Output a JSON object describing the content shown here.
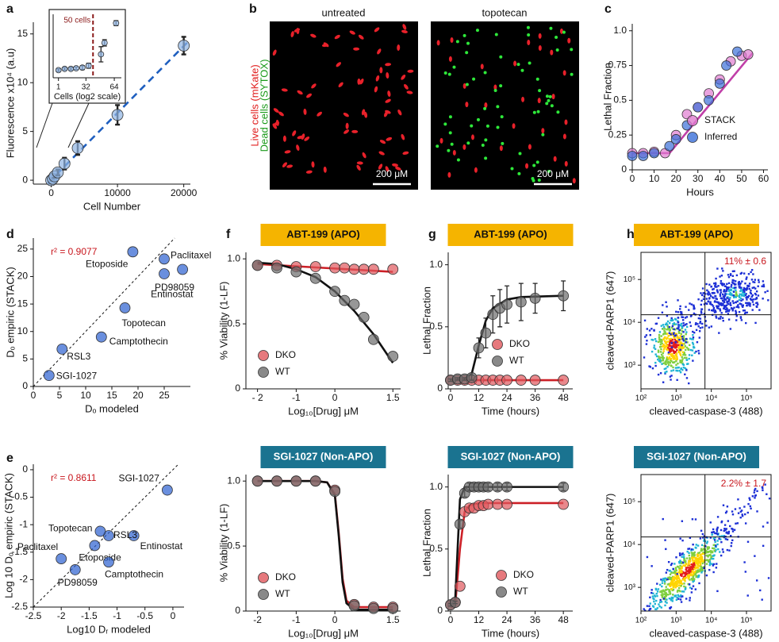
{
  "panel_labels": [
    "a",
    "b",
    "c",
    "d",
    "e",
    "f",
    "g",
    "h"
  ],
  "micrographs": {
    "panels": [
      {
        "title": "untreated",
        "scale_bar": "200 μM"
      },
      {
        "title": "topotecan",
        "scale_bar": "200 μM"
      }
    ],
    "labels": [
      "Live cells (mKate)",
      "Dead cells (SYTOX)"
    ]
  },
  "chart_data": [
    {
      "type": "scatter",
      "xlabel": "Cell Number",
      "ylabel": "Fluorescence x10⁴ (a.u)",
      "xlim": [
        -2700,
        21000
      ],
      "ylim": [
        -0.4,
        16.2
      ],
      "xticks": [
        0,
        10000,
        20000
      ],
      "yticks": [
        0,
        5,
        10,
        15
      ],
      "series": [
        {
          "color": "#1f5fbf",
          "mode": "line",
          "dash": true,
          "x": [
            -500,
            20500
          ],
          "y": [
            -0.3,
            14.1
          ]
        },
        {
          "color": "#8fb4e3",
          "mode": "markers",
          "x": [
            0,
            250,
            500,
            1000,
            2000,
            4000,
            10000,
            20000
          ],
          "y": [
            0,
            0.15,
            0.4,
            0.8,
            1.7,
            3.3,
            6.7,
            13.8
          ],
          "err": [
            0.1,
            0.1,
            0.15,
            0.3,
            0.6,
            0.7,
            1.0,
            0.9
          ]
        }
      ]
    },
    {
      "type": "scatter",
      "xlabel": "Cells (log2 scale)",
      "xlim": [
        -5,
        72
      ],
      "ylim": [
        0,
        1
      ],
      "xticks": [
        1,
        32,
        64
      ],
      "vline": 40,
      "annotation": "50 cells",
      "series": [
        {
          "color": "#8fb4e3",
          "mode": "markers",
          "x": [
            1,
            8,
            15,
            21,
            28,
            35,
            49,
            53,
            66
          ],
          "y": [
            0.12,
            0.14,
            0.14,
            0.15,
            0.16,
            0.19,
            0.37,
            0.55,
            0.86
          ],
          "err": [
            0.02,
            0.02,
            0.02,
            0.02,
            0.03,
            0.04,
            0.12,
            0.05,
            0.04
          ]
        }
      ]
    },
    {
      "type": "line",
      "xlabel": "Hours",
      "ylabel": "Lethal Fraction",
      "xlim": [
        0,
        62
      ],
      "ylim": [
        0,
        1.05
      ],
      "xticks": [
        0,
        10,
        20,
        30,
        40,
        50,
        60
      ],
      "yticks": [
        0,
        0.25,
        0.5,
        0.75,
        {
          "value": 1,
          "label": "1.0"
        }
      ],
      "legend": "center right",
      "series": [
        {
          "color": "#c03fa8",
          "mode": "line",
          "x": [
            0,
            17,
            55
          ],
          "y": [
            0.12,
            0.12,
            0.84
          ]
        },
        {
          "name": "STACK",
          "color": "#e07ad0",
          "mode": "markers",
          "x": [
            0,
            5,
            10,
            15,
            20,
            25,
            30,
            35,
            40,
            45,
            50,
            53
          ],
          "y": [
            0.12,
            0.12,
            0.13,
            0.12,
            0.25,
            0.4,
            0.45,
            0.55,
            0.65,
            0.78,
            0.82,
            0.83
          ]
        },
        {
          "name": "Inferred",
          "color": "#3a6fd8",
          "mode": "markers",
          "x": [
            0,
            5,
            10,
            17,
            20,
            25,
            30,
            35,
            40,
            43,
            48
          ],
          "y": [
            0.1,
            0.1,
            0.12,
            0.17,
            0.22,
            0.32,
            0.45,
            0.5,
            0.62,
            0.75,
            0.85
          ]
        }
      ]
    },
    {
      "type": "scatter",
      "xlabel": "Dₒ modeled",
      "ylabel": "Dₒ empiric (STACK)",
      "annotation": "r² = 0.9077",
      "diagonal": true,
      "xlim": [
        0,
        30
      ],
      "ylim": [
        0,
        27
      ],
      "xticks": [
        0,
        5,
        10,
        15,
        20,
        25
      ],
      "yticks": [
        0,
        5,
        10,
        15,
        20,
        25
      ],
      "point_labels": [
        "SGI-1027",
        "RSL3",
        "Camptothecin",
        "Topotecan",
        "Etoposide",
        "Paclitaxel",
        "PD98059",
        "Entinostat"
      ],
      "series": [
        {
          "color": "#2b5fd0",
          "mode": "markers",
          "x": [
            3,
            5.5,
            13,
            17.5,
            19,
            25,
            25,
            28.5
          ],
          "y": [
            2,
            6.8,
            9,
            14.3,
            24.5,
            23.2,
            20.5,
            21.3
          ]
        }
      ]
    },
    {
      "type": "scatter",
      "xlabel": "Log10 Dᵣ modeled",
      "ylabel": "Log 10 Dₒ empiric (STACK)",
      "annotation": "r² = 0.8611",
      "diagonal": true,
      "xlim": [
        -2.5,
        0.2
      ],
      "ylim": [
        -2.5,
        0.1
      ],
      "xticks": [
        -2.5,
        -2,
        -1.5,
        -1,
        -0.5,
        0
      ],
      "yticks": [
        -2.5,
        -2,
        -1.5,
        -1,
        -0.5,
        0
      ],
      "point_labels": [
        "SGI-1027",
        "Entinostat",
        "RSL3",
        "Topotecan",
        "Etoposide",
        "Camptothecin",
        "Paclitaxel",
        "PD98059"
      ],
      "series": [
        {
          "color": "#2b5fd0",
          "mode": "markers",
          "x": [
            -0.1,
            -0.7,
            -1.15,
            -1.3,
            -1.4,
            -1.15,
            -2,
            -1.75
          ],
          "y": [
            -0.37,
            -1.2,
            -1.2,
            -1.12,
            -1.38,
            -1.68,
            -1.62,
            -1.82
          ]
        }
      ]
    },
    {
      "type": "line",
      "title": "ABT-199 (APO)",
      "header_color": "#f5b400",
      "xlabel": "Log₁₀[Drug] μM",
      "ylabel": "% Viability (1-LF)",
      "xlim": [
        -2.3,
        1.7
      ],
      "ylim": [
        0,
        1.05
      ],
      "xticks": [
        {
          "value": -2,
          "label": "- 2"
        },
        -1,
        0,
        1.5
      ],
      "yticks": [
        0,
        0.5,
        {
          "value": 1,
          "label": "1.0"
        }
      ],
      "legend": "lower left",
      "series": [
        {
          "color": "#cc2027",
          "mode": "line",
          "x": [
            -2,
            1.5
          ],
          "y": [
            0.96,
            0.9
          ]
        },
        {
          "color": "#111111",
          "mode": "line",
          "x": [
            -2,
            -1.5,
            -1,
            -0.5,
            0,
            0.5,
            1,
            1.5
          ],
          "y": [
            0.97,
            0.96,
            0.92,
            0.86,
            0.75,
            0.6,
            0.42,
            0.2
          ]
        },
        {
          "name": "DKO",
          "color": "#e0575c",
          "mode": "markers",
          "x": [
            -2,
            -1.5,
            -1,
            -0.5,
            0,
            0.25,
            0.5,
            0.75,
            1,
            1.5
          ],
          "y": [
            0.95,
            0.95,
            0.94,
            0.94,
            0.93,
            0.93,
            0.92,
            0.92,
            0.92,
            0.92
          ]
        },
        {
          "name": "WT",
          "color": "#6b6b6b",
          "mode": "markers",
          "x": [
            -2,
            -1.5,
            -1,
            -0.5,
            0,
            0.25,
            0.5,
            0.75,
            1,
            1.5
          ],
          "y": [
            0.95,
            0.93,
            0.9,
            0.85,
            0.75,
            0.68,
            0.65,
            0.55,
            0.38,
            0.25
          ]
        }
      ]
    },
    {
      "type": "line",
      "title": "SGI-1027 (Non-APO)",
      "header_color": "#1a7390",
      "xlabel": "Log₁₀[Drug] μM",
      "ylabel": "% Viability (1-LF)",
      "xlim": [
        -2.3,
        1.7
      ],
      "ylim": [
        0,
        1.05
      ],
      "xticks": [
        -2,
        -1,
        0,
        1.5
      ],
      "yticks": [
        0,
        0.5,
        {
          "value": 1,
          "label": "1.0"
        }
      ],
      "legend": "lower left",
      "series": [
        {
          "color": "#cc2027",
          "mode": "line",
          "x": [
            -2,
            -0.5,
            -0.2,
            0,
            0.1,
            0.2,
            0.3,
            0.5,
            1.5
          ],
          "y": [
            1,
            1,
            0.99,
            0.9,
            0.6,
            0.25,
            0.08,
            0.03,
            0.03
          ]
        },
        {
          "color": "#111111",
          "mode": "line",
          "x": [
            -2,
            -0.5,
            -0.2,
            0,
            0.1,
            0.2,
            0.3,
            0.5,
            1.5
          ],
          "y": [
            1,
            1,
            0.99,
            0.89,
            0.58,
            0.22,
            0.06,
            0.01,
            0.01
          ]
        },
        {
          "name": "DKO",
          "color": "#e0575c",
          "mode": "markers",
          "x": [
            -2,
            -1.5,
            -1,
            -0.5,
            0,
            0.5,
            1,
            1.5
          ],
          "y": [
            1,
            1,
            1,
            1,
            0.93,
            0.05,
            0.03,
            0.03
          ]
        },
        {
          "name": "WT",
          "color": "#6b6b6b",
          "mode": "markers",
          "x": [
            -2,
            -1.5,
            -1,
            -0.5,
            0,
            0.5,
            1,
            1.5
          ],
          "y": [
            1,
            1,
            1,
            1,
            0.92,
            0.04,
            0.02,
            0.02
          ]
        }
      ]
    },
    {
      "type": "line",
      "title": "ABT-199 (APO)",
      "header_color": "#f5b400",
      "xlabel": "Time (hours)",
      "ylabel": "Lethal Fraction",
      "xlim": [
        -1,
        52
      ],
      "ylim": [
        0,
        1.1
      ],
      "xticks": [
        0,
        12,
        24,
        36,
        48
      ],
      "yticks": [
        0,
        0.5,
        {
          "value": 1,
          "label": "1.0"
        }
      ],
      "legend": "center right",
      "series": [
        {
          "color": "#cc2027",
          "mode": "line",
          "x": [
            0,
            48
          ],
          "y": [
            0.07,
            0.07
          ]
        },
        {
          "color": "#111111",
          "mode": "line",
          "x": [
            0,
            6,
            9,
            12,
            15,
            18,
            24,
            30,
            48
          ],
          "y": [
            0.07,
            0.08,
            0.12,
            0.35,
            0.55,
            0.65,
            0.72,
            0.74,
            0.75
          ]
        },
        {
          "name": "DKO",
          "color": "#e0575c",
          "mode": "markers",
          "x": [
            0,
            3,
            6,
            9,
            12,
            15,
            18,
            21,
            24,
            30,
            36,
            48
          ],
          "y": [
            0.07,
            0.07,
            0.07,
            0.07,
            0.07,
            0.07,
            0.07,
            0.07,
            0.07,
            0.07,
            0.07,
            0.07
          ]
        },
        {
          "name": "WT",
          "color": "#6b6b6b",
          "mode": "markers",
          "x": [
            0,
            3,
            6,
            9,
            12,
            15,
            18,
            21,
            24,
            30,
            36,
            48
          ],
          "y": [
            0.07,
            0.08,
            0.08,
            0.09,
            0.33,
            0.45,
            0.6,
            0.65,
            0.68,
            0.7,
            0.73,
            0.75
          ],
          "err": [
            0.01,
            0.01,
            0.01,
            0.02,
            0.08,
            0.12,
            0.15,
            0.15,
            0.15,
            0.15,
            0.12,
            0.12
          ]
        }
      ]
    },
    {
      "type": "line",
      "title": "SGI-1027 (Non-APO)",
      "header_color": "#1a7390",
      "xlabel": "Time (hours)",
      "ylabel": "Lethal Fraction",
      "xlim": [
        -1,
        52
      ],
      "ylim": [
        0,
        1.1
      ],
      "xticks": [
        0,
        12,
        24,
        36,
        48
      ],
      "yticks": [
        0,
        0.5,
        {
          "value": 1,
          "label": "1.0"
        }
      ],
      "legend": "lower right",
      "series": [
        {
          "color": "#cc2027",
          "mode": "line",
          "x": [
            0,
            2,
            4,
            6,
            8,
            12,
            48
          ],
          "y": [
            0.03,
            0.05,
            0.5,
            0.8,
            0.85,
            0.87,
            0.87
          ]
        },
        {
          "color": "#111111",
          "mode": "line",
          "x": [
            0,
            2,
            4,
            6,
            8,
            48
          ],
          "y": [
            0.03,
            0.1,
            0.9,
            1,
            1,
            1
          ]
        },
        {
          "name": "DKO",
          "color": "#e0575c",
          "mode": "markers",
          "x": [
            0,
            2,
            4,
            6,
            8,
            10,
            12,
            14,
            16,
            20,
            24,
            48
          ],
          "y": [
            0.05,
            0.07,
            0.2,
            0.8,
            0.83,
            0.83,
            0.85,
            0.85,
            0.86,
            0.86,
            0.86,
            0.86
          ]
        },
        {
          "name": "WT",
          "color": "#6b6b6b",
          "mode": "markers",
          "x": [
            0,
            2,
            4,
            6,
            8,
            10,
            12,
            14,
            16,
            20,
            24,
            48
          ],
          "y": [
            0.05,
            0.07,
            0.7,
            0.95,
            1,
            1,
            1,
            1,
            1,
            1,
            1,
            1
          ],
          "err": [
            0.01,
            0.01,
            0.03,
            0.03,
            0.03,
            0.03,
            0.03,
            0.03,
            0.03,
            0.03,
            0.03,
            0.03
          ]
        }
      ]
    },
    {
      "type": "flow",
      "title": "ABT-199 (APO)",
      "header_color": "#f5b400",
      "xlabel": "cleaved-caspase-3 (488)",
      "ylabel": "cleaved-PARP1 (647)",
      "annotation": "11% ± 0.6",
      "xlog": true,
      "ylog": true,
      "xlim": [
        100,
        500000
      ],
      "ylim": [
        280,
        430000
      ],
      "xticks": [
        {
          "value": 100,
          "label": "10²"
        },
        {
          "value": 1000,
          "label": "10³"
        },
        {
          "value": 10000,
          "label": "10⁴"
        },
        {
          "value": 100000,
          "label": "10⁵"
        }
      ],
      "yticks": [
        {
          "value": 1000,
          "label": "10³"
        },
        {
          "value": 10000,
          "label": "10⁴"
        },
        {
          "value": 100000,
          "label": "10⁵"
        }
      ],
      "gate": [
        6600,
        15000
      ]
    },
    {
      "type": "flow",
      "title": "SGI-1027 (Non-APO)",
      "header_color": "#1a7390",
      "xlabel": "cleaved-caspase-3 (488)",
      "ylabel": "cleaved-PARP1 (647)",
      "annotation": "2.2% ± 1.7",
      "xlog": true,
      "ylog": true,
      "xlim": [
        100,
        500000
      ],
      "ylim": [
        280,
        430000
      ],
      "xticks": [
        {
          "value": 100,
          "label": "10²"
        },
        {
          "value": 1000,
          "label": "10³"
        },
        {
          "value": 10000,
          "label": "10⁴"
        },
        {
          "value": 100000,
          "label": "10⁵"
        }
      ],
      "yticks": [
        {
          "value": 1000,
          "label": "10³"
        },
        {
          "value": 10000,
          "label": "10⁴"
        },
        {
          "value": 100000,
          "label": "10⁵"
        }
      ],
      "gate": [
        6600,
        15000
      ]
    }
  ]
}
